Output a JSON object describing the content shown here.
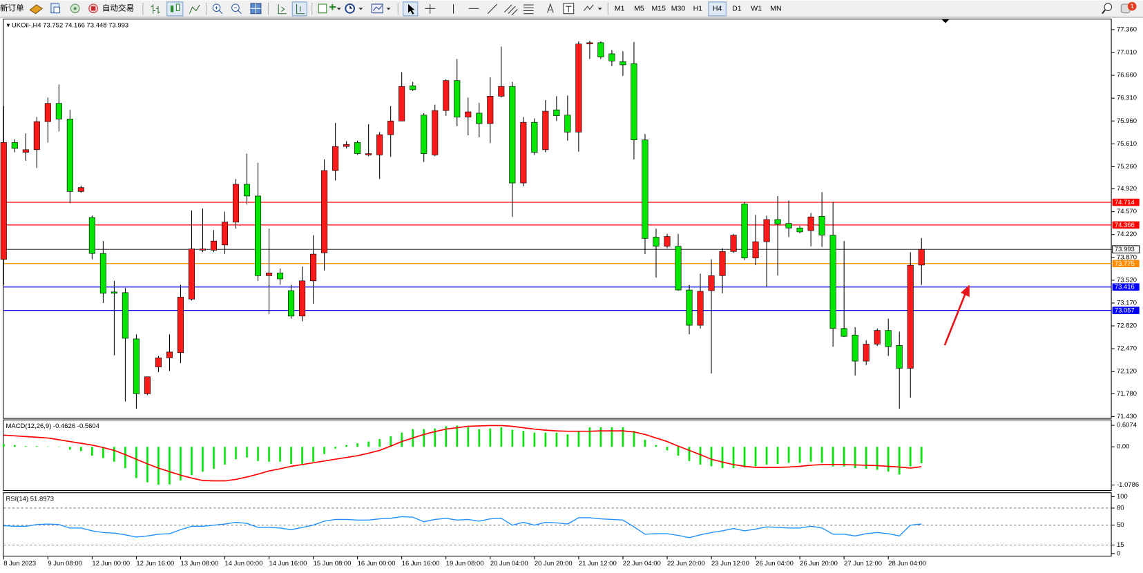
{
  "toolbar": {
    "new_order": "新订单",
    "auto_trading": "自动交易",
    "timeframes": [
      {
        "label": "M1"
      },
      {
        "label": "M5"
      },
      {
        "label": "M15"
      },
      {
        "label": "M30"
      },
      {
        "label": "H1"
      },
      {
        "label": "H4",
        "active": true
      },
      {
        "label": "D1"
      },
      {
        "label": "W1"
      },
      {
        "label": "MN"
      }
    ],
    "alert_count": 1
  },
  "chart": {
    "symbol": "UKOil-,H4",
    "ylim": [
      71.43,
      77.36
    ],
    "yticks": [
      {
        "value": 77.36,
        "label": "77.360"
      },
      {
        "value": 77.01,
        "label": "77.010"
      },
      {
        "value": 76.66,
        "label": "76.660"
      },
      {
        "value": 76.31,
        "label": "76.310"
      },
      {
        "value": 75.96,
        "label": "75.960"
      },
      {
        "value": 75.61,
        "label": "75.610"
      },
      {
        "value": 75.26,
        "label": "75.260"
      },
      {
        "value": 74.92,
        "label": "74.920"
      },
      {
        "value": 74.57,
        "label": "74.570"
      },
      {
        "value": 74.22,
        "label": "74.220"
      },
      {
        "value": 73.87,
        "label": "73.870"
      },
      {
        "value": 73.52,
        "label": "73.520"
      },
      {
        "value": 73.17,
        "label": "73.170"
      },
      {
        "value": 72.82,
        "label": "72.820"
      },
      {
        "value": 72.47,
        "label": "72.470"
      },
      {
        "value": 72.12,
        "label": "72.120"
      },
      {
        "value": 71.78,
        "label": "71.780"
      },
      {
        "value": 71.43,
        "label": "71.430"
      }
    ],
    "up_color": "#ff1a1a",
    "down_color": "#00e600",
    "bid_line_color": "#000000",
    "categories": [
      "8 Jun 2023",
      null,
      null,
      null,
      "9 Jun 08:00",
      null,
      null,
      null,
      "12 Jun 00:00",
      null,
      null,
      null,
      "12 Jun 16:00",
      null,
      null,
      null,
      "13 Jun 08:00",
      null,
      null,
      null,
      "14 Jun 00:00",
      null,
      null,
      null,
      "14 Jun 16:00",
      null,
      null,
      null,
      "15 Jun 08:00",
      null,
      null,
      null,
      "16 Jun 00:00",
      null,
      null,
      null,
      "16 Jun 16:00",
      null,
      null,
      null,
      "19 Jun 08:00",
      null,
      null,
      null,
      "20 Jun 04:00",
      null,
      null,
      null,
      "20 Jun 20:00",
      null,
      null,
      null,
      "21 Jun 12:00",
      null,
      null,
      null,
      "22 Jun 04:00",
      null,
      null,
      null,
      "22 Jun 20:00",
      null,
      null,
      null,
      "23 Jun 12:00",
      null,
      null,
      null,
      "26 Jun 04:00",
      null,
      null,
      null,
      "26 Jun 20:00",
      null,
      null,
      null,
      "27 Jun 12:00",
      null,
      null,
      null,
      "28 Jun 04:00",
      null,
      null,
      null
    ],
    "open": [
      73.84,
      75.63,
      75.48,
      75.52,
      75.95,
      76.23,
      75.99,
      74.88,
      74.48,
      73.93,
      73.34,
      73.33,
      72.62,
      71.78,
      72.19,
      72.33,
      72.41,
      73.23,
      73.98,
      73.98,
      74.06,
      74.41,
      74.99,
      74.81,
      73.59,
      73.63,
      73.36,
      72.97,
      73.51,
      73.94,
      75.2,
      75.57,
      75.63,
      75.44,
      75.44,
      75.75,
      75.96,
      76.5,
      76.05,
      75.44,
      76.12,
      76.58,
      76.02,
      76.08,
      75.92,
      76.34,
      76.49,
      75.01,
      75.94,
      75.52,
      76.13,
      76.05,
      75.79,
      77.14,
      77.16,
      76.99,
      76.87,
      76.84,
      75.67,
      74.18,
      74.04,
      74.04,
      73.37,
      72.83,
      73.36,
      73.59,
      73.96,
      74.69,
      73.86,
      74.11,
      74.45,
      74.39,
      74.32,
      74.28,
      74.5,
      74.21,
      72.78,
      72.68,
      72.28,
      72.54,
      72.75,
      72.52,
      72.17,
      73.752
    ],
    "high": [
      76.19,
      75.68,
      75.77,
      76.02,
      76.32,
      76.52,
      76.13,
      74.97,
      74.51,
      74.12,
      73.51,
      73.4,
      72.69,
      72.04,
      72.36,
      72.69,
      73.45,
      74.59,
      74.62,
      74.29,
      74.57,
      75.07,
      75.46,
      75.32,
      74.31,
      73.7,
      73.45,
      73.73,
      74.21,
      75.37,
      75.93,
      75.65,
      75.66,
      75.91,
      75.79,
      76.19,
      76.71,
      76.56,
      76.08,
      76.21,
      76.6,
      76.91,
      76.32,
      76.24,
      76.63,
      77.1,
      76.56,
      76.02,
      76.0,
      76.28,
      76.34,
      76.35,
      77.18,
      77.19,
      77.18,
      77.05,
      77.03,
      77.17,
      75.76,
      74.31,
      74.23,
      74.23,
      73.45,
      73.62,
      73.84,
      74.01,
      74.23,
      74.72,
      74.52,
      74.51,
      74.81,
      74.74,
      74.35,
      74.55,
      74.87,
      74.72,
      74.12,
      72.8,
      72.6,
      72.78,
      72.93,
      72.73,
      73.95,
      74.166
    ],
    "low": [
      73.45,
      75.48,
      75.35,
      75.24,
      75.63,
      75.8,
      74.7,
      74.86,
      73.84,
      73.17,
      72.37,
      71.66,
      71.55,
      71.76,
      72.11,
      72.13,
      72.25,
      73.21,
      73.95,
      73.95,
      73.92,
      74.31,
      74.68,
      73.51,
      73.0,
      73.45,
      72.93,
      72.89,
      73.16,
      73.67,
      75.05,
      75.54,
      75.44,
      75.42,
      75.07,
      75.41,
      75.96,
      76.42,
      75.33,
      75.42,
      76.04,
      75.88,
      75.74,
      75.71,
      75.62,
      76.32,
      74.49,
      74.96,
      75.44,
      75.48,
      75.96,
      75.66,
      75.49,
      76.91,
      76.91,
      76.8,
      76.65,
      75.37,
      73.92,
      73.56,
      74.01,
      73.36,
      72.69,
      72.78,
      72.09,
      73.32,
      73.94,
      73.83,
      73.75,
      73.42,
      73.59,
      74.18,
      74.24,
      74.04,
      74.03,
      72.5,
      72.65,
      72.06,
      72.22,
      72.51,
      72.36,
      71.55,
      71.72,
      73.448
    ],
    "close": [
      75.63,
      75.54,
      75.52,
      75.95,
      76.23,
      75.99,
      74.88,
      74.94,
      73.93,
      73.32,
      73.32,
      72.63,
      71.78,
      72.04,
      72.33,
      72.42,
      73.26,
      74.0,
      74.0,
      74.12,
      74.41,
      74.99,
      74.81,
      73.59,
      73.63,
      73.54,
      72.97,
      73.51,
      73.92,
      75.2,
      75.57,
      75.6,
      75.46,
      75.46,
      75.75,
      75.96,
      76.49,
      76.44,
      75.46,
      76.12,
      76.58,
      76.02,
      76.1,
      75.92,
      76.34,
      76.49,
      75.01,
      75.94,
      75.48,
      76.11,
      76.04,
      75.79,
      77.14,
      77.16,
      76.94,
      76.88,
      76.82,
      75.67,
      74.16,
      74.04,
      74.19,
      73.37,
      72.83,
      73.35,
      73.59,
      73.96,
      74.21,
      73.86,
      74.11,
      74.45,
      74.38,
      74.32,
      74.26,
      74.49,
      74.21,
      72.78,
      72.66,
      72.28,
      72.54,
      72.75,
      72.5,
      72.17,
      73.75,
      73.993
    ],
    "levels": [
      {
        "value": 74.714,
        "color": "#ff0000"
      },
      {
        "value": 74.366,
        "color": "#ff0000"
      },
      {
        "value": 73.775,
        "color": "#ff8c00"
      },
      {
        "value": 73.416,
        "color": "#0000ff"
      },
      {
        "value": 73.057,
        "color": "#0000ff"
      }
    ]
  },
  "macd": {
    "name": "MACD(12,26,9)",
    "ylim": [
      -1.0786,
      0.6074
    ],
    "yticks": [
      0.6074,
      {
        "value": 0,
        "label": "0.00"
      },
      -1.0786
    ],
    "histogram": {
      "color": "#00e600",
      "values": [
        0.08,
        0.05,
        0.02,
        0.02,
        0.01,
        -0.01,
        -0.08,
        -0.12,
        -0.25,
        -0.32,
        -0.42,
        -0.6,
        -0.88,
        -1.0,
        -1.07,
        -1.06,
        -0.95,
        -0.8,
        -0.7,
        -0.62,
        -0.5,
        -0.35,
        -0.3,
        -0.4,
        -0.42,
        -0.42,
        -0.48,
        -0.48,
        -0.42,
        -0.2,
        -0.05,
        0.05,
        0.1,
        0.15,
        0.22,
        0.3,
        0.4,
        0.5,
        0.5,
        0.52,
        0.58,
        0.6,
        0.55,
        0.5,
        0.52,
        0.55,
        0.48,
        0.45,
        0.4,
        0.4,
        0.4,
        0.35,
        0.45,
        0.55,
        0.55,
        0.55,
        0.55,
        0.45,
        0.2,
        0.05,
        -0.1,
        -0.25,
        -0.4,
        -0.5,
        -0.55,
        -0.6,
        -0.6,
        -0.58,
        -0.55,
        -0.5,
        -0.48,
        -0.45,
        -0.45,
        -0.42,
        -0.45,
        -0.55,
        -0.55,
        -0.6,
        -0.62,
        -0.65,
        -0.7,
        -0.78,
        -0.55,
        -0.4626
      ]
    },
    "signal": {
      "color": "#ff0000",
      "values": [
        0.33,
        0.31,
        0.29,
        0.27,
        0.25,
        0.2,
        0.15,
        0.1,
        0.05,
        -0.02,
        -0.1,
        -0.22,
        -0.35,
        -0.48,
        -0.6,
        -0.7,
        -0.8,
        -0.88,
        -0.95,
        -0.96,
        -0.96,
        -0.92,
        -0.85,
        -0.77,
        -0.68,
        -0.62,
        -0.55,
        -0.5,
        -0.45,
        -0.4,
        -0.35,
        -0.3,
        -0.25,
        -0.18,
        -0.1,
        0.02,
        0.15,
        0.25,
        0.35,
        0.43,
        0.5,
        0.54,
        0.58,
        0.59,
        0.6,
        0.6,
        0.58,
        0.54,
        0.5,
        0.47,
        0.45,
        0.44,
        0.44,
        0.44,
        0.45,
        0.45,
        0.45,
        0.42,
        0.35,
        0.25,
        0.15,
        0.02,
        -0.1,
        -0.22,
        -0.35,
        -0.43,
        -0.5,
        -0.55,
        -0.58,
        -0.58,
        -0.58,
        -0.57,
        -0.55,
        -0.52,
        -0.5,
        -0.5,
        -0.5,
        -0.51,
        -0.52,
        -0.53,
        -0.55,
        -0.57,
        -0.6,
        -0.5604
      ]
    }
  },
  "rsi": {
    "name": "RSI(14)",
    "ylim": [
      0,
      100
    ],
    "yticks": [
      100,
      80,
      50,
      15,
      0
    ],
    "color": "#1e90ff",
    "values": [
      49,
      48,
      48,
      51,
      52,
      51,
      45,
      45,
      40,
      37,
      36,
      33,
      29,
      31,
      34,
      35,
      42,
      48,
      48,
      50,
      52,
      55,
      53,
      46,
      46,
      45,
      42,
      46,
      50,
      57,
      60,
      60,
      59,
      59,
      61,
      62,
      65,
      64,
      56,
      60,
      62,
      59,
      60,
      57,
      61,
      62,
      50,
      55,
      50,
      55,
      54,
      52,
      63,
      63,
      61,
      60,
      59,
      47,
      34,
      35,
      35,
      32,
      28,
      33,
      37,
      40,
      44,
      40,
      43,
      47,
      46,
      45,
      45,
      48,
      45,
      34,
      34,
      31,
      35,
      37,
      35,
      31,
      50,
      51.8973
    ]
  }
}
